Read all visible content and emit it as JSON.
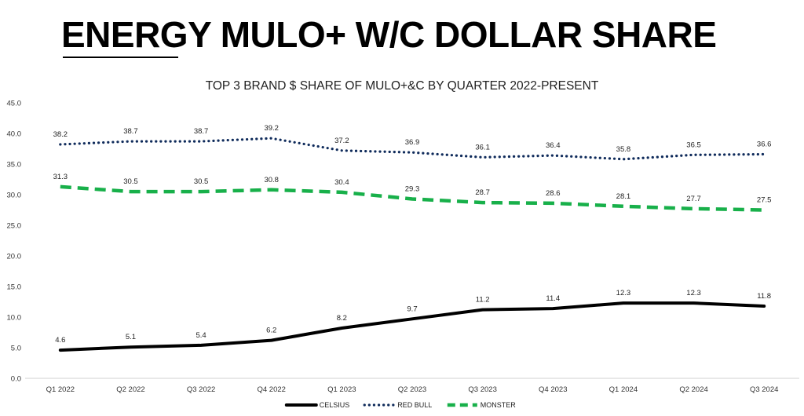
{
  "page": {
    "title": "ENERGY MULO+ W/C DOLLAR SHARE"
  },
  "chart_data": {
    "type": "line",
    "title": "TOP 3 BRAND $ SHARE OF MULO+&C BY QUARTER 2022-PRESENT",
    "xlabel": "",
    "ylabel": "",
    "categories": [
      "Q1 2022",
      "Q2 2022",
      "Q3 2022",
      "Q4 2022",
      "Q1 2023",
      "Q2 2023",
      "Q3 2023",
      "Q4 2023",
      "Q1 2024",
      "Q2 2024",
      "Q3 2024"
    ],
    "ylim": [
      0,
      45
    ],
    "yticks": [
      "0.0",
      "5.0",
      "10.0",
      "15.0",
      "20.0",
      "25.0",
      "30.0",
      "35.0",
      "40.0",
      "45.0"
    ],
    "grid": false,
    "legend_position": "bottom",
    "series": [
      {
        "name": "CELSIUS",
        "color": "#000000",
        "line_style": "solid",
        "values": [
          4.6,
          5.1,
          5.4,
          6.2,
          8.2,
          9.7,
          11.2,
          11.4,
          12.3,
          12.3,
          11.8
        ],
        "labels": [
          "4.6",
          "5.1",
          "5.4",
          "6.2",
          "8.2",
          "9.7",
          "11.2",
          "11.4",
          "12.3",
          "12.3",
          "11.8"
        ]
      },
      {
        "name": "RED BULL",
        "color": "#0f2b5b",
        "line_style": "dotted",
        "values": [
          38.2,
          38.7,
          38.7,
          39.2,
          37.2,
          36.9,
          36.1,
          36.4,
          35.8,
          36.5,
          36.6
        ],
        "labels": [
          "38.2",
          "38.7",
          "38.7",
          "39.2",
          "37.2",
          "36.9",
          "36.1",
          "36.4",
          "35.8",
          "36.5",
          "36.6"
        ]
      },
      {
        "name": "MONSTER",
        "color": "#18b04a",
        "line_style": "dashed",
        "values": [
          31.3,
          30.5,
          30.5,
          30.8,
          30.4,
          29.3,
          28.7,
          28.6,
          28.1,
          27.7,
          27.5
        ],
        "labels": [
          "31.3",
          "30.5",
          "30.5",
          "30.8",
          "30.4",
          "29.3",
          "28.7",
          "28.6",
          "28.1",
          "27.7",
          "27.5"
        ]
      }
    ]
  }
}
